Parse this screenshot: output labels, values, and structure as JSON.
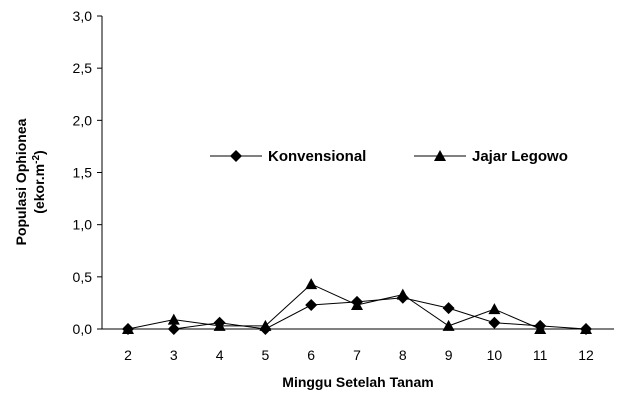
{
  "chart_data": {
    "type": "line",
    "xlabel": "Minggu Setelah Tanam",
    "ylabel": {
      "line1": "Populasi Ophionea",
      "line2_prefix": "(ekor.m",
      "line2_sup": "-2",
      "line2_suffix": ")"
    },
    "ylim": [
      0,
      3
    ],
    "y_ticks": [
      "0,0",
      "0,5",
      "1,0",
      "1,5",
      "2,0",
      "2,5",
      "3,0"
    ],
    "y_tick_values": [
      0,
      0.5,
      1,
      1.5,
      2,
      2.5,
      3
    ],
    "x": [
      2,
      3,
      4,
      5,
      6,
      7,
      8,
      9,
      10,
      11,
      12
    ],
    "x_tick_labels": [
      "2",
      "3",
      "4",
      "5",
      "6",
      "7",
      "8",
      "9",
      "10",
      "11",
      "12"
    ],
    "legend_position": "center",
    "grid": false,
    "series": [
      {
        "name": "Konvensional",
        "marker": "diamond",
        "color": "#000000",
        "values": [
          0.0,
          0.0,
          0.06,
          0.0,
          0.23,
          0.26,
          0.3,
          0.2,
          0.06,
          0.03,
          0.0
        ]
      },
      {
        "name": "Jajar Legowo",
        "marker": "triangle",
        "color": "#000000",
        "values": [
          0.0,
          0.09,
          0.03,
          0.03,
          0.43,
          0.23,
          0.33,
          0.03,
          0.19,
          0.0,
          0.0
        ]
      }
    ]
  }
}
